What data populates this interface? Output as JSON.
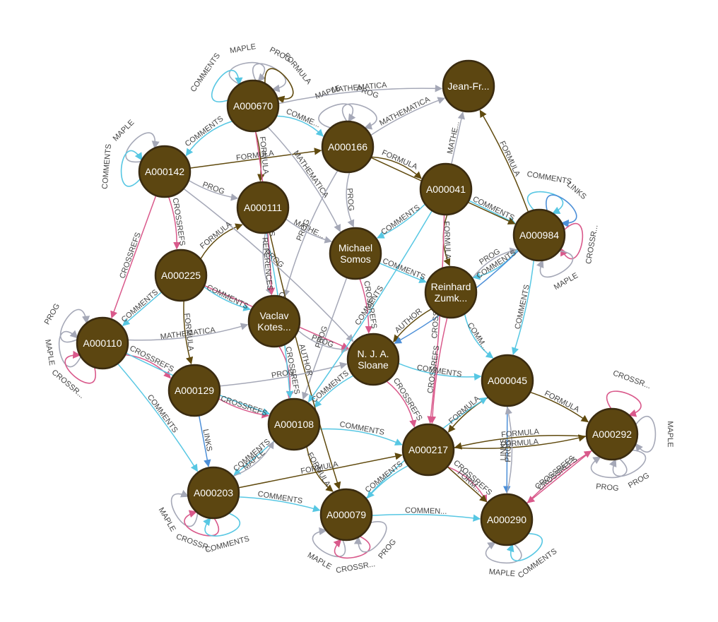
{
  "colors": {
    "node_fill": "#5c4611",
    "node_stroke": "#3a2b10",
    "background": "#ffffff",
    "rel": {
      "MAPLE": "#a5a8b7",
      "PROG": "#a5a8b7",
      "COMMENTS": "#57c7e3",
      "CROSSREFS": "#d9598b",
      "FORMULA": "#604a0e",
      "MATHEMATICA": "#a5a8b7",
      "LINKS": "#4c8fd8",
      "AUTHOR": "#604a0e",
      "REFERENCES": "#a5a8b7"
    }
  },
  "graph": {
    "nodes": [
      {
        "id": "A000670",
        "lines": [
          "A000670"
        ]
      },
      {
        "id": "A000166",
        "lines": [
          "A000166"
        ]
      },
      {
        "id": "JeanFr",
        "lines": [
          "Jean-Fr..."
        ]
      },
      {
        "id": "A000142",
        "lines": [
          "A000142"
        ]
      },
      {
        "id": "A000111",
        "lines": [
          "A000111"
        ]
      },
      {
        "id": "A000041",
        "lines": [
          "A000041"
        ]
      },
      {
        "id": "A000984",
        "lines": [
          "A000984"
        ]
      },
      {
        "id": "Somos",
        "lines": [
          "Michael",
          "Somos"
        ]
      },
      {
        "id": "A000225",
        "lines": [
          "A000225"
        ]
      },
      {
        "id": "Zumk",
        "lines": [
          "Reinhard",
          "Zumk..."
        ]
      },
      {
        "id": "Kotes",
        "lines": [
          "Vaclav",
          "Kotes..."
        ]
      },
      {
        "id": "A000110",
        "lines": [
          "A000110"
        ]
      },
      {
        "id": "Sloane",
        "lines": [
          "N. J. A.",
          "Sloane"
        ]
      },
      {
        "id": "A000045",
        "lines": [
          "A000045"
        ]
      },
      {
        "id": "A000129",
        "lines": [
          "A000129"
        ]
      },
      {
        "id": "A000108",
        "lines": [
          "A000108"
        ]
      },
      {
        "id": "A000292",
        "lines": [
          "A000292"
        ]
      },
      {
        "id": "A000217",
        "lines": [
          "A000217"
        ]
      },
      {
        "id": "A000203",
        "lines": [
          "A000203"
        ]
      },
      {
        "id": "A000079",
        "lines": [
          "A000079"
        ]
      },
      {
        "id": "A000290",
        "lines": [
          "A000290"
        ]
      }
    ],
    "loops": [
      {
        "node": "A000670",
        "rel": "MAPLE",
        "text": "MAPLE"
      },
      {
        "node": "A000670",
        "rel": "PROG",
        "text": "PROG"
      },
      {
        "node": "A000670",
        "rel": "FORMULA",
        "text": "FORMULA"
      },
      {
        "node": "A000670",
        "rel": "COMMENTS",
        "text": "COMMENTS"
      },
      {
        "node": "A000166",
        "rel": "MAPLE",
        "text": "MAPLE"
      },
      {
        "node": "A000166",
        "rel": "PROG",
        "text": "PROG"
      },
      {
        "node": "A000142",
        "rel": "MAPLE",
        "text": "MAPLE"
      },
      {
        "node": "A000142",
        "rel": "COMMENTS",
        "text": "COMMENTS"
      },
      {
        "node": "A000984",
        "rel": "COMMENTS",
        "text": "COMMENTS"
      },
      {
        "node": "A000984",
        "rel": "LINKS",
        "text": "LINKS"
      },
      {
        "node": "A000984",
        "rel": "CROSSREFS",
        "text": "CROSSR..."
      },
      {
        "node": "A000984",
        "rel": "MAPLE",
        "text": "MAPLE"
      },
      {
        "node": "A000110",
        "rel": "PROG",
        "text": "PROG"
      },
      {
        "node": "A000110",
        "rel": "MAPLE",
        "text": "MAPLE"
      },
      {
        "node": "A000110",
        "rel": "CROSSREFS",
        "text": "CROSSR..."
      },
      {
        "node": "A000292",
        "rel": "CROSSREFS",
        "text": "CROSSR..."
      },
      {
        "node": "A000292",
        "rel": "MAPLE",
        "text": "MAPLE"
      },
      {
        "node": "A000292",
        "rel": "PROG",
        "text": "PROG"
      },
      {
        "node": "A000292",
        "rel": "PROG",
        "text": "PROG"
      },
      {
        "node": "A000203",
        "rel": "MAPLE",
        "text": "MAPLE"
      },
      {
        "node": "A000203",
        "rel": "CROSSREFS",
        "text": "CROSSR..."
      },
      {
        "node": "A000203",
        "rel": "COMMENTS",
        "text": "COMMENTS"
      },
      {
        "node": "A000079",
        "rel": "MAPLE",
        "text": "MAPLE"
      },
      {
        "node": "A000079",
        "rel": "CROSSREFS",
        "text": "CROSSR..."
      },
      {
        "node": "A000079",
        "rel": "PROG",
        "text": "PROG"
      },
      {
        "node": "A000290",
        "rel": "MAPLE",
        "text": "MAPLE"
      },
      {
        "node": "A000290",
        "rel": "COMMENTS",
        "text": "COMMENTS"
      }
    ],
    "edges": [
      {
        "from": "A000670",
        "to": "JeanFr",
        "rel": "MATHEMATICA",
        "text": "MATHEMATICA"
      },
      {
        "from": "A000166",
        "to": "JeanFr",
        "rel": "MATHEMATICA",
        "text": "MATHEMATICA"
      },
      {
        "from": "A000041",
        "to": "JeanFr",
        "rel": "MATHEMATICA",
        "text": "MATHE..."
      },
      {
        "from": "A000984",
        "to": "JeanFr",
        "rel": "FORMULA",
        "text": "FORMULA"
      },
      {
        "from": "A000670",
        "to": "A000142",
        "rel": "COMMENTS",
        "text": "COMMENTS"
      },
      {
        "from": "A000670",
        "to": "A000166",
        "rel": "COMMENTS",
        "text": "COMME..."
      },
      {
        "from": "A000670",
        "to": "A000111",
        "rel": "FORMULA",
        "text": "FORMULA"
      },
      {
        "from": "A000142",
        "to": "A000166",
        "rel": "FORMULA",
        "text": "FORMULA"
      },
      {
        "from": "A000142",
        "to": "A000111",
        "rel": "PROG",
        "text": "PROG"
      },
      {
        "from": "A000166",
        "to": "Somos",
        "rel": "PROG",
        "text": "PROG"
      },
      {
        "from": "A000166",
        "to": "A000041",
        "rel": "FORMULA",
        "text": "FORMULA"
      },
      {
        "from": "A000041",
        "to": "Somos",
        "rel": "COMMENTS",
        "text": "COMMENTS"
      },
      {
        "from": "A000041",
        "to": "A000984",
        "rel": "COMMENTS",
        "text": "COMMENTS"
      },
      {
        "from": "A000111",
        "to": "Somos",
        "rel": "MATHEMATICA",
        "text": "MATHE..."
      },
      {
        "from": "A000111",
        "to": "Kotes",
        "rel": "REFERENCES",
        "text": "REFERENCES"
      },
      {
        "from": "A000225",
        "to": "A000111",
        "rel": "FORMULA",
        "text": "FORMULA"
      },
      {
        "from": "A000142",
        "to": "A000225",
        "rel": "CROSSREFS",
        "text": "CROSSREFS"
      },
      {
        "from": "A000225",
        "to": "A000110",
        "rel": "COMMENTS",
        "text": "COMMENTS"
      },
      {
        "from": "A000225",
        "to": "Kotes",
        "rel": "COMMENTS",
        "text": "COMMENTS"
      },
      {
        "from": "A000110",
        "to": "Kotes",
        "rel": "MATHEMATICA",
        "text": "MATHEMATICA"
      },
      {
        "from": "A000110",
        "to": "A000129",
        "rel": "CROSSREFS",
        "text": "CROSSREFS"
      },
      {
        "from": "A000110",
        "to": "A000203",
        "rel": "COMMENTS",
        "text": "COMMENTS"
      },
      {
        "from": "A000129",
        "to": "A000203",
        "rel": "LINKS",
        "text": "LINKS"
      },
      {
        "from": "A000129",
        "to": "A000108",
        "rel": "CROSSREFS",
        "text": "CROSSREFS"
      },
      {
        "from": "Kotes",
        "to": "Sloane",
        "rel": "PROG",
        "text": "PROG"
      },
      {
        "from": "Kotes",
        "to": "A000108",
        "rel": "CROSSREFS",
        "text": "CROSSREFS"
      },
      {
        "from": "Somos",
        "to": "Sloane",
        "rel": "CROSSREFS",
        "text": "CROSSREFS"
      },
      {
        "from": "Somos",
        "to": "Zumk",
        "rel": "COMMENTS",
        "text": "COMMENTS"
      },
      {
        "from": "Zumk",
        "to": "Sloane",
        "rel": "AUTHOR",
        "text": "AUTHOR"
      },
      {
        "from": "Zumk",
        "to": "A000045",
        "rel": "COMMENTS",
        "text": "COMM..."
      },
      {
        "from": "Zumk",
        "to": "A000984",
        "rel": "PROG",
        "text": "PROG"
      },
      {
        "from": "A000045",
        "to": "A000292",
        "rel": "FORMULA",
        "text": "FORMULA"
      },
      {
        "from": "A000045",
        "to": "A000290",
        "rel": "LINKS",
        "text": "LINKS"
      },
      {
        "from": "A000045",
        "to": "A000217",
        "rel": "FORMULA",
        "text": "FORMULA"
      },
      {
        "from": "A000217",
        "to": "A000292",
        "rel": "FORMULA",
        "text": "FORMULA"
      },
      {
        "from": "A000217",
        "to": "A000290",
        "rel": "CROSSREFS",
        "text": "CROSSREFS"
      },
      {
        "from": "A000290",
        "to": "A000292",
        "rel": "CROSSREFS",
        "text": "CROSSREFS"
      },
      {
        "from": "A000292",
        "to": "A000290",
        "rel": "CROSSREFS",
        "text": "CROSSREFS"
      },
      {
        "from": "A000217",
        "to": "A000079",
        "rel": "COMMENTS",
        "text": "COMMENTS"
      },
      {
        "from": "A000108",
        "to": "A000079",
        "rel": "FORMULA",
        "text": "FORMULA"
      },
      {
        "from": "A000108",
        "to": "A000217",
        "rel": "COMMENTS",
        "text": "COMMENTS"
      },
      {
        "from": "A000203",
        "to": "A000079",
        "rel": "COMMENTS",
        "text": "COMMENTS"
      },
      {
        "from": "A000108",
        "to": "A000203",
        "rel": "COMMENTS",
        "text": "COMMENTS"
      },
      {
        "from": "Sloane",
        "to": "A000108",
        "rel": "COMMENTS",
        "text": "COMMENTS"
      },
      {
        "from": "Sloane",
        "to": "A000045",
        "rel": "COMMENTS",
        "text": "COMMENTS"
      },
      {
        "from": "Sloane",
        "to": "A000217",
        "rel": "CROSSREFS",
        "text": "CROSSREFS"
      },
      {
        "from": "A000079",
        "to": "A000290",
        "rel": "COMMENTS",
        "text": "COMMEN..."
      },
      {
        "from": "A000217",
        "to": "A000290",
        "rel": "FORMULA",
        "text": "FORM..."
      },
      {
        "from": "Zumk",
        "to": "A000217",
        "rel": "CROSSREFS",
        "text": "CROSSREFS"
      },
      {
        "from": "A000166",
        "to": "Kotes",
        "rel": "PROG",
        "text": "PROG"
      },
      {
        "from": "A000670",
        "to": "Somos",
        "rel": "MATHEMATICA",
        "text": "MATHEMATICA"
      },
      {
        "from": "A000111",
        "to": "A000108",
        "rel": "COMMENTS",
        "text": "COMMENTS"
      },
      {
        "from": "A000142",
        "to": "A000110",
        "rel": "CROSSREFS",
        "text": "CROSSREFS"
      },
      {
        "from": "A000225",
        "to": "A000129",
        "rel": "FORMULA",
        "text": "FORMULA"
      },
      {
        "from": "A000041",
        "to": "Zumk",
        "rel": "FORMULA",
        "text": "FORMULA"
      },
      {
        "from": "A000984",
        "to": "Zumk",
        "rel": "COMMENTS",
        "text": "COMMENTS"
      },
      {
        "from": "A000984",
        "to": "A000045",
        "rel": "COMMENTS",
        "text": "COMMENTS"
      },
      {
        "from": "Somos",
        "to": "A000108",
        "rel": "PROG",
        "text": "PROG"
      },
      {
        "from": "A000110",
        "to": "A000108",
        "rel": "COMMENTS",
        "text": "COMMENTS"
      },
      {
        "from": "A000290",
        "to": "A000045",
        "rel": "PROG",
        "text": "PROG"
      },
      {
        "from": "A000079",
        "to": "A000045",
        "rel": "COMMENTS",
        "text": "COMMENTS"
      },
      {
        "from": "A000041",
        "to": "A000217",
        "rel": "CROSSREFS",
        "text": "CROSSR..."
      },
      {
        "from": "A000166",
        "to": "A000984",
        "rel": "FORMULA",
        "text": "FORMULA"
      },
      {
        "from": "A000111",
        "to": "A000079",
        "rel": "AUTHOR",
        "text": "AUTHOR"
      },
      {
        "from": "A000203",
        "to": "A000108",
        "rel": "MAPLE",
        "text": "MAPLE"
      },
      {
        "from": "A000142",
        "to": "Sloane",
        "rel": "PROG",
        "text": "PROG"
      },
      {
        "from": "A000670",
        "to": "Kotes",
        "rel": "CROSSREFS",
        "text": "CROSSREFS"
      },
      {
        "from": "A000225",
        "to": "Sloane",
        "rel": "CROSSREFS",
        "text": "CROSSREFS"
      },
      {
        "from": "A000129",
        "to": "Sloane",
        "rel": "PROG",
        "text": "PROG"
      },
      {
        "from": "A000292",
        "to": "A000217",
        "rel": "FORMULA",
        "text": "FORMULA"
      },
      {
        "from": "A000984",
        "to": "Sloane",
        "rel": "LINKS",
        "text": "LINKS"
      },
      {
        "from": "A000041",
        "to": "A000108",
        "rel": "COMMENTS",
        "text": "COMMENTS"
      },
      {
        "from": "A000203",
        "to": "A000217",
        "rel": "FORMULA",
        "text": "FORMULA"
      }
    ]
  }
}
